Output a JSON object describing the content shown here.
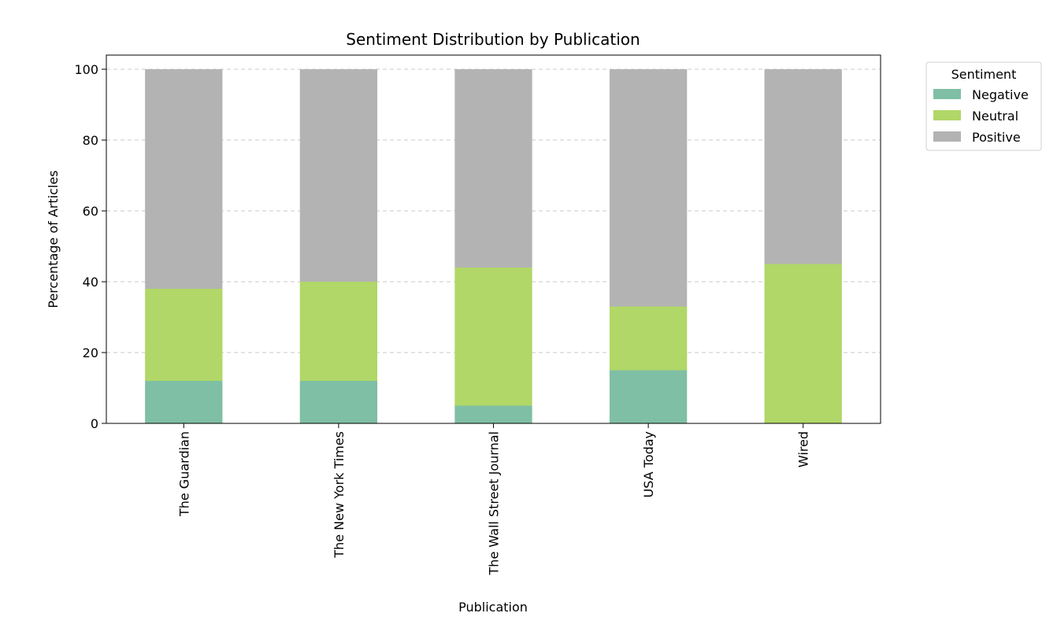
{
  "chart_data": {
    "type": "bar",
    "stacked": true,
    "title": "Sentiment Distribution by Publication",
    "xlabel": "Publication",
    "ylabel": "Percentage of Articles",
    "categories": [
      "The Guardian",
      "The New York Times",
      "The Wall Street Journal",
      "USA Today",
      "Wired"
    ],
    "series": [
      {
        "name": "Negative",
        "color": "#7fbfa5",
        "values": [
          12,
          12,
          5,
          15,
          0
        ]
      },
      {
        "name": "Neutral",
        "color": "#b0d767",
        "values": [
          26,
          28,
          39,
          18,
          45
        ]
      },
      {
        "name": "Positive",
        "color": "#b3b3b3",
        "values": [
          62,
          60,
          56,
          67,
          55
        ]
      }
    ],
    "ylim": [
      0,
      104
    ],
    "yticks": [
      0,
      20,
      40,
      60,
      80,
      100
    ],
    "grid": "y dashed",
    "legend": {
      "title": "Sentiment",
      "placement": "outside top-right"
    }
  }
}
